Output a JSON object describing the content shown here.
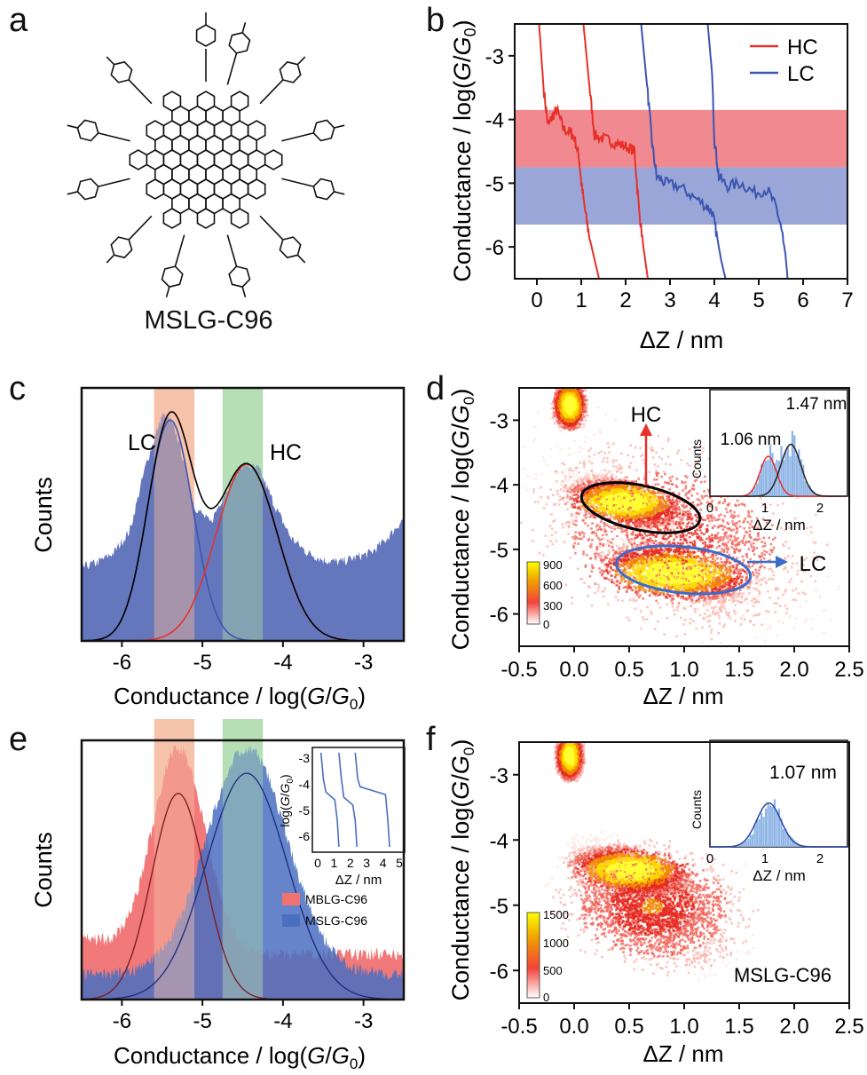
{
  "panels": {
    "a": {
      "letter": "a",
      "caption": "MSLG-C96"
    },
    "b": {
      "letter": "b",
      "xlabel": "ΔZ / nm",
      "ylabel_prefix": "Conductance / log(",
      "ylabel_G": "G",
      "ylabel_slash": "/",
      "ylabel_G0": "G",
      "ylabel_sub": "0",
      "ylabel_suffix": ")",
      "xticks": [
        "0",
        "1",
        "2",
        "3",
        "4",
        "5",
        "6",
        "7"
      ],
      "yticks": [
        "-3",
        "-4",
        "-5",
        "-6"
      ],
      "legend": [
        {
          "name": "HC",
          "color": "#e8302a"
        },
        {
          "name": "LC",
          "color": "#3b55b0"
        }
      ]
    },
    "c": {
      "letter": "c",
      "label_lc": "LC",
      "label_hc": "HC",
      "ylabel": "Counts",
      "xlabel": "Conductance / log(G/G0)",
      "xticks": [
        "-6",
        "-5",
        "-4",
        "-3"
      ]
    },
    "d": {
      "letter": "d",
      "xlabel": "ΔZ / nm",
      "xticks": [
        "-0.5",
        "0.0",
        "0.5",
        "1.0",
        "1.5",
        "2.0",
        "2.5"
      ],
      "yticks": [
        "-3",
        "-4",
        "-5",
        "-6"
      ],
      "label_hc": "HC",
      "label_lc": "LC",
      "colorbar": [
        "900",
        "600",
        "300",
        "0"
      ],
      "inset": {
        "ylabel": "Counts",
        "xlabel": "ΔZ / nm",
        "xticks": [
          "0",
          "1",
          "2"
        ],
        "peak1": "1.06 nm",
        "peak2": "1.47 nm"
      }
    },
    "e": {
      "letter": "e",
      "ylabel": "Counts",
      "xticks": [
        "-6",
        "-5",
        "-4",
        "-3"
      ],
      "legend": [
        {
          "name": "MBLG-C96",
          "color": "#f07272"
        },
        {
          "name": "MSLG-C96",
          "color": "#4a6fc0"
        }
      ],
      "inset": {
        "xticks": [
          "0",
          "1",
          "2",
          "3",
          "4",
          "5"
        ],
        "yticks": [
          "-3",
          "-4",
          "-5",
          "-6"
        ],
        "xlabel": "ΔZ / nm"
      }
    },
    "f": {
      "letter": "f",
      "xlabel": "ΔZ / nm",
      "xticks": [
        "-0.5",
        "0.0",
        "0.5",
        "1.0",
        "1.5",
        "2.0",
        "2.5"
      ],
      "yticks": [
        "-3",
        "-4",
        "-5",
        "-6"
      ],
      "colorbar": [
        "1500",
        "1000",
        "500",
        "0"
      ],
      "sample": "MSLG-C96",
      "inset": {
        "ylabel": "Counts",
        "xlabel": "ΔZ / nm",
        "xticks": [
          "0",
          "1",
          "2"
        ],
        "peak": "1.07 nm"
      }
    }
  },
  "chart_data": [
    {
      "panel": "b",
      "type": "line",
      "xlim": [
        -0.5,
        7
      ],
      "ylim": [
        -6.5,
        -2.5
      ],
      "bands": [
        {
          "name": "HC",
          "ymin": -4.75,
          "ymax": -3.85,
          "color": "#f08a90"
        },
        {
          "name": "LC",
          "ymin": -5.65,
          "ymax": -4.75,
          "color": "#9aa6d8"
        }
      ],
      "series": [
        {
          "name": "HC",
          "color": "#e8302a",
          "x": [
            0.05,
            0.15,
            0.25,
            0.35,
            0.45,
            0.6,
            0.75,
            0.85,
            0.95,
            1.0,
            1.1,
            1.2,
            1.3,
            1.4
          ],
          "y": [
            -2.5,
            -3.5,
            -4.1,
            -3.95,
            -3.85,
            -4.15,
            -4.2,
            -4.3,
            -4.6,
            -5.0,
            -5.5,
            -5.9,
            -6.2,
            -6.5
          ]
        },
        {
          "name": "HC",
          "color": "#e8302a",
          "x": [
            1.05,
            1.2,
            1.3,
            1.5,
            1.7,
            1.9,
            2.1,
            2.2,
            2.3,
            2.4,
            2.5
          ],
          "y": [
            -2.5,
            -3.6,
            -4.25,
            -4.3,
            -4.35,
            -4.4,
            -4.45,
            -4.5,
            -5.4,
            -6.0,
            -6.5
          ]
        },
        {
          "name": "LC",
          "color": "#3b55b0",
          "x": [
            2.35,
            2.5,
            2.6,
            2.7,
            2.9,
            3.2,
            3.5,
            3.8,
            3.95,
            4.05,
            4.15,
            4.25
          ],
          "y": [
            -2.5,
            -3.6,
            -4.4,
            -4.9,
            -5.0,
            -5.05,
            -5.2,
            -5.35,
            -5.45,
            -5.8,
            -6.2,
            -6.5
          ]
        },
        {
          "name": "LC",
          "color": "#3b55b0",
          "x": [
            3.85,
            3.95,
            4.0,
            4.1,
            4.3,
            4.6,
            4.9,
            5.2,
            5.4,
            5.5,
            5.6,
            5.65
          ],
          "y": [
            -2.5,
            -3.3,
            -4.3,
            -4.9,
            -5.05,
            -5.0,
            -5.15,
            -5.1,
            -5.4,
            -5.7,
            -6.1,
            -6.5
          ]
        }
      ]
    },
    {
      "panel": "c",
      "type": "area",
      "xlim": [
        -6.5,
        -2.5
      ],
      "bands": [
        {
          "xmin": -5.6,
          "xmax": -5.1,
          "color": "#f6c4aa"
        },
        {
          "xmin": -4.75,
          "xmax": -4.25,
          "color": "#b6dfb6"
        }
      ],
      "histogram": {
        "x": [
          -6.5,
          -6.3,
          -6.1,
          -5.9,
          -5.7,
          -5.5,
          -5.4,
          -5.3,
          -5.1,
          -4.9,
          -4.7,
          -4.5,
          -4.3,
          -4.1,
          -3.9,
          -3.7,
          -3.5,
          -3.3,
          -3.1,
          -2.9,
          -2.7,
          -2.5
        ],
        "y": [
          0.3,
          0.32,
          0.36,
          0.45,
          0.72,
          0.92,
          0.9,
          0.82,
          0.55,
          0.48,
          0.62,
          0.72,
          0.7,
          0.55,
          0.42,
          0.36,
          0.33,
          0.32,
          0.34,
          0.36,
          0.42,
          0.5
        ]
      },
      "series": [
        {
          "name": "LC fit",
          "color": "#3b55b0",
          "mu": -5.4,
          "sigma": 0.28,
          "amp": 0.9
        },
        {
          "name": "HC fit",
          "color": "#e8302a",
          "mu": -4.45,
          "sigma": 0.38,
          "amp": 0.72
        },
        {
          "name": "sum",
          "color": "#000000"
        }
      ]
    },
    {
      "panel": "e",
      "type": "area",
      "xlim": [
        -6.5,
        -2.5
      ],
      "series": [
        {
          "name": "MBLG-C96",
          "color": "#f07272",
          "mu": -5.3,
          "sigma": 0.33,
          "amp": 0.82
        },
        {
          "name": "MSLG-C96",
          "color": "#4a6fc0",
          "mu": -4.45,
          "sigma": 0.5,
          "amp": 0.9
        }
      ]
    }
  ]
}
